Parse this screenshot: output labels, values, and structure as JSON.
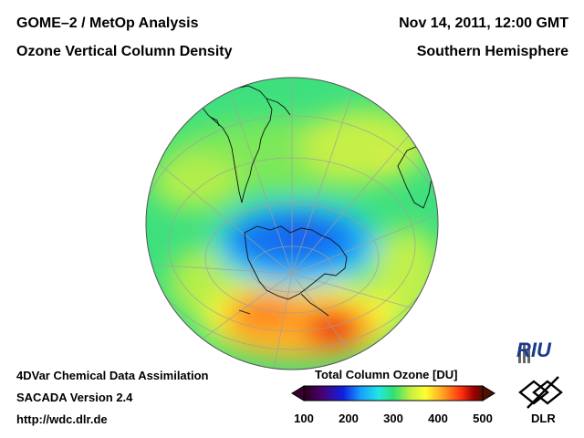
{
  "header": {
    "title_line1": "GOME–2 / MetOp Analysis",
    "title_line2": "Ozone Vertical Column Density",
    "date": "Nov 14, 2011, 12:00 GMT",
    "region": "Southern Hemisphere"
  },
  "footer": {
    "line1": "4DVar Chemical Data Assimilation",
    "line2": "SACADA Version 2.4",
    "line3": "http://wdc.dlr.de"
  },
  "colorbar": {
    "title": "Total Column Ozone [DU]",
    "ticks": [
      "100",
      "200",
      "300",
      "400",
      "500"
    ],
    "colors": [
      "#1a0010",
      "#4a006a",
      "#1020e0",
      "#1aa0ff",
      "#20e8e0",
      "#30e070",
      "#c8f040",
      "#ffff30",
      "#ffa020",
      "#ff3010",
      "#a00000",
      "#501000"
    ]
  },
  "logos": {
    "riu": "RIU",
    "dlr": "DLR"
  },
  "map": {
    "projection": "orthographic",
    "hemisphere": "south"
  }
}
